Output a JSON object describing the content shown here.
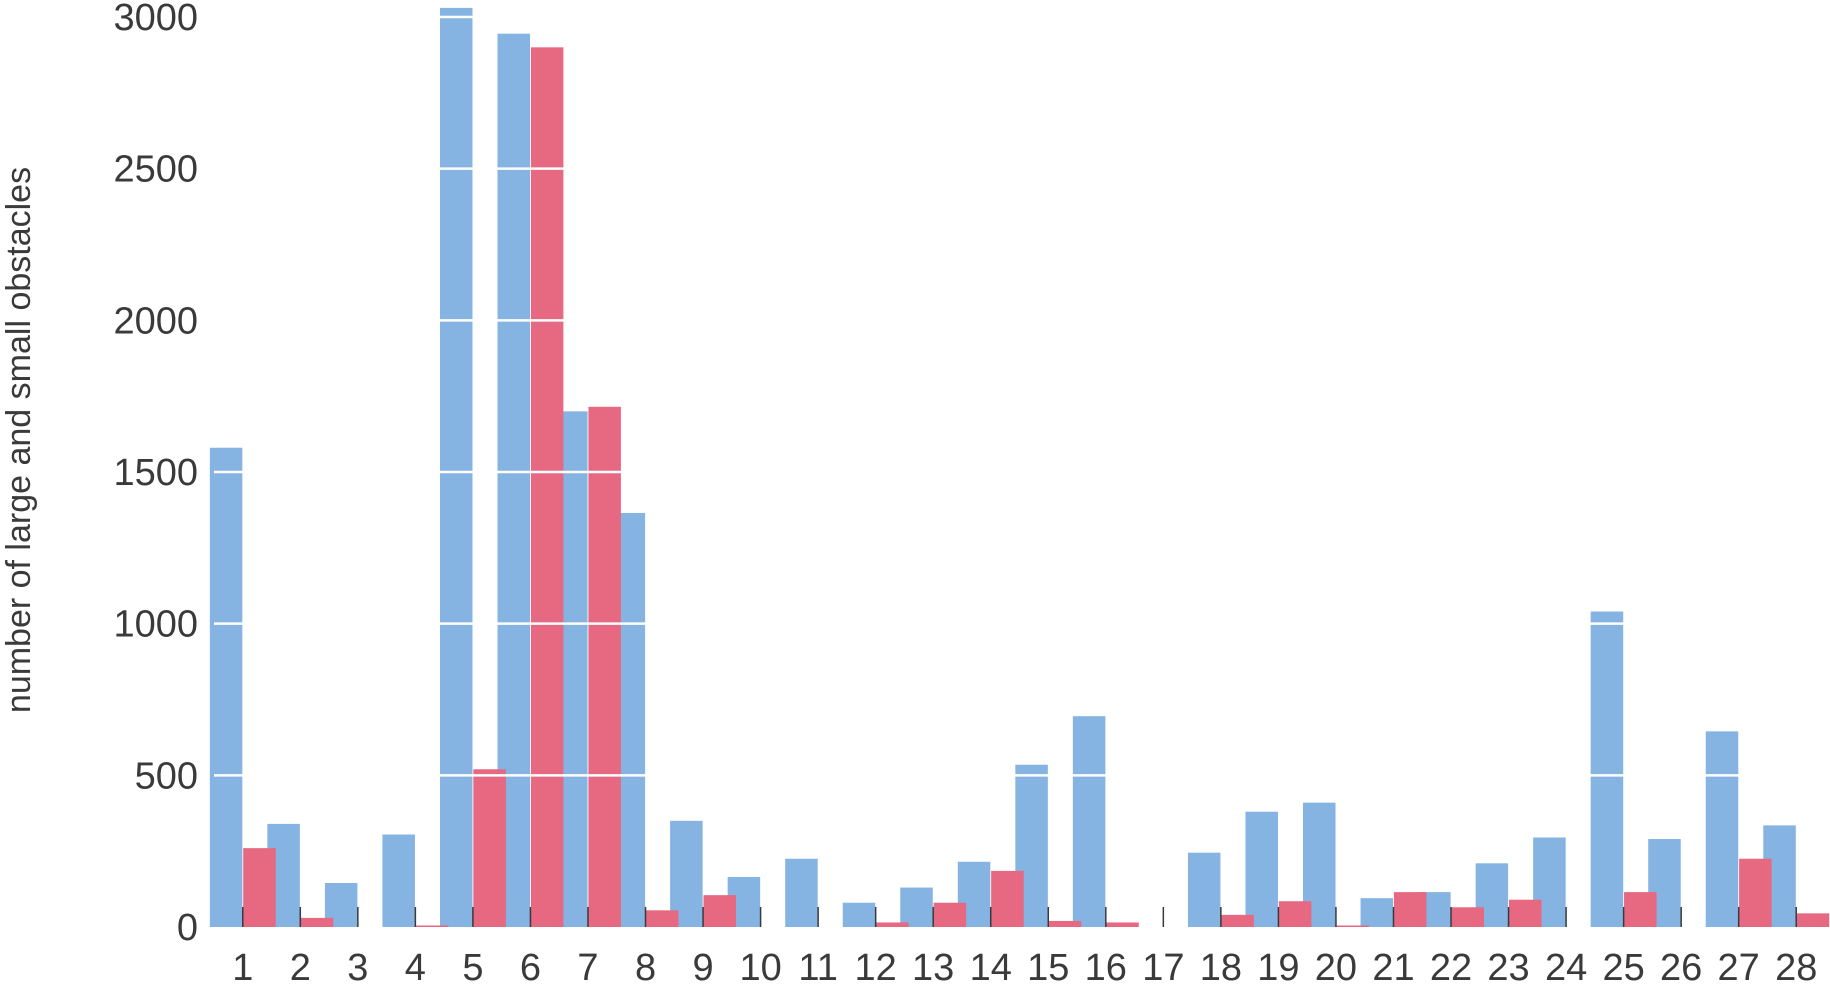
{
  "chart_data": {
    "type": "bar",
    "title": "",
    "xlabel": "",
    "ylabel": "number of large and small obstacles",
    "ylim": [
      0,
      3000
    ],
    "yticks": [
      0,
      500,
      1000,
      1500,
      2000,
      2500,
      3000
    ],
    "grid": "horizontal white lines drawn over bars",
    "legend": "none",
    "categories": [
      "1",
      "2",
      "3",
      "4",
      "5",
      "6",
      "7",
      "8",
      "9",
      "10",
      "11",
      "12",
      "13",
      "14",
      "15",
      "16",
      "17",
      "18",
      "19",
      "20",
      "21",
      "22",
      "23",
      "24",
      "25",
      "26",
      "27",
      "28"
    ],
    "series": [
      {
        "color": "#85b3e2",
        "values": [
          1580,
          340,
          145,
          305,
          3030,
          2945,
          1700,
          1365,
          350,
          165,
          225,
          80,
          130,
          215,
          535,
          695,
          0,
          245,
          380,
          410,
          95,
          115,
          210,
          295,
          1040,
          290,
          645,
          335
        ]
      },
      {
        "color": "#e66881",
        "values": [
          260,
          30,
          0,
          5,
          520,
          2900,
          1715,
          55,
          105,
          0,
          0,
          15,
          80,
          185,
          20,
          15,
          0,
          40,
          85,
          5,
          115,
          65,
          90,
          0,
          115,
          0,
          225,
          45
        ]
      }
    ]
  }
}
